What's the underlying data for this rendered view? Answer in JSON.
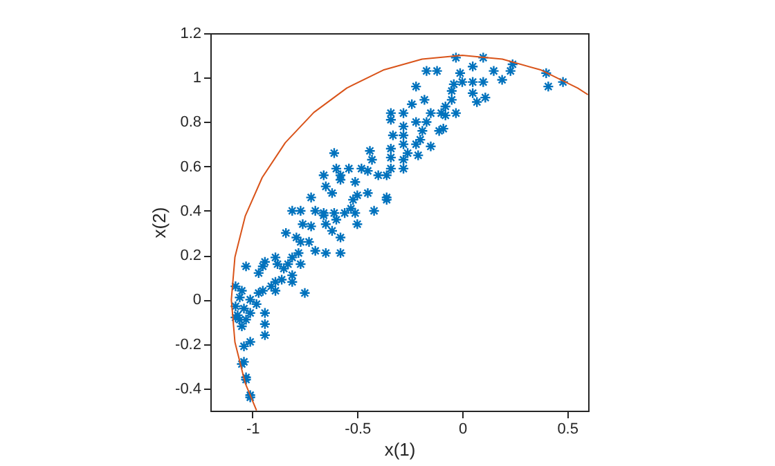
{
  "chart_data": {
    "type": "scatter",
    "xlabel": "x(1)",
    "ylabel": "x(2)",
    "xlim": [
      -1.2,
      0.6
    ],
    "ylim": [
      -0.5,
      1.2
    ],
    "xticks": [
      -1,
      -0.5,
      0,
      0.5
    ],
    "yticks": [
      -0.4,
      -0.2,
      0,
      0.2,
      0.4,
      0.6,
      0.8,
      1,
      1.2
    ],
    "grid": false,
    "series": [
      {
        "color": "#0072bd",
        "marker": "cross",
        "x": [
          -0.17,
          -0.12,
          -0.03,
          0.1,
          0.05,
          0.15,
          0.23,
          0.24,
          0.4,
          0.41,
          0.48,
          -0.22,
          -0.18,
          -0.01,
          -0.04,
          0,
          0.05,
          0.1,
          0.19,
          0.05,
          0.11,
          0.07,
          -0.05,
          -0.05,
          -0.08,
          -0.1,
          -0.03,
          -0.08,
          -0.15,
          -0.24,
          -0.28,
          -0.34,
          -0.34,
          -0.22,
          -0.17,
          -0.28,
          -0.19,
          -0.11,
          -0.09,
          -0.28,
          -0.33,
          -0.2,
          -0.28,
          -0.22,
          -0.15,
          -0.34,
          -0.26,
          -0.21,
          -0.34,
          -0.28,
          -0.34,
          -0.28,
          -0.36,
          -0.61,
          -0.66,
          -0.6,
          -0.58,
          -0.54,
          -0.48,
          -0.44,
          -0.43,
          -0.45,
          -0.4,
          -0.36,
          -0.65,
          -0.62,
          -0.58,
          -0.51,
          -0.5,
          -0.45,
          -0.52,
          -0.72,
          -0.81,
          -0.77,
          -0.7,
          -0.66,
          -0.61,
          -0.56,
          -0.51,
          -0.42,
          -0.36,
          -0.53,
          -0.66,
          -0.6,
          -0.5,
          -0.76,
          -0.72,
          -0.65,
          -0.62,
          -0.58,
          -0.84,
          -0.79,
          -0.77,
          -0.73,
          -0.7,
          -0.65,
          -0.58,
          -0.78,
          -0.81,
          -0.77,
          -0.83,
          -0.85,
          -0.89,
          -0.88,
          -0.94,
          -0.95,
          -0.97,
          -1.03,
          -0.81,
          -0.81,
          -0.86,
          -0.89,
          -0.91,
          -0.95,
          -0.97,
          -1.01,
          -0.98,
          -0.75,
          -0.89,
          -1.08,
          -1.05,
          -1.06,
          -1.08,
          -1.04,
          -1.07,
          -1.01,
          -1.06,
          -1.03,
          -1.05,
          -1.08,
          -0.94,
          -0.94,
          -0.94,
          -1.01,
          -1.04,
          -1.04,
          -1.05,
          -1.03,
          -1.03,
          -1.01,
          -1.01
        ],
        "values": [
          1.03,
          1.03,
          1.09,
          1.09,
          1.05,
          1.03,
          1.03,
          1.06,
          1.02,
          0.96,
          0.98,
          0.96,
          0.9,
          1.02,
          0.97,
          0.98,
          0.98,
          0.98,
          0.99,
          0.93,
          0.91,
          0.89,
          0.94,
          0.9,
          0.87,
          0.84,
          0.84,
          0.83,
          0.84,
          0.88,
          0.84,
          0.84,
          0.81,
          0.8,
          0.8,
          0.78,
          0.76,
          0.76,
          0.77,
          0.74,
          0.74,
          0.72,
          0.7,
          0.7,
          0.69,
          0.68,
          0.66,
          0.65,
          0.64,
          0.63,
          0.59,
          0.59,
          0.45,
          0.66,
          0.56,
          0.59,
          0.56,
          0.59,
          0.59,
          0.67,
          0.63,
          0.58,
          0.56,
          0.56,
          0.51,
          0.48,
          0.54,
          0.53,
          0.47,
          0.48,
          0.45,
          0.46,
          0.4,
          0.4,
          0.4,
          0.39,
          0.39,
          0.39,
          0.39,
          0.4,
          0.46,
          0.41,
          0.38,
          0.36,
          0.34,
          0.34,
          0.33,
          0.34,
          0.31,
          0.28,
          0.3,
          0.28,
          0.26,
          0.26,
          0.22,
          0.21,
          0.21,
          0.21,
          0.19,
          0.16,
          0.16,
          0.14,
          0.19,
          0.16,
          0.17,
          0.15,
          0.12,
          0.15,
          0.11,
          0.08,
          0.09,
          0.04,
          0.06,
          0.04,
          0.03,
          0,
          -0.02,
          0.03,
          0.08,
          0.06,
          0.04,
          0.01,
          -0.03,
          -0.04,
          -0.07,
          -0.06,
          -0.09,
          -0.09,
          -0.12,
          -0.08,
          -0.06,
          -0.11,
          -0.16,
          -0.19,
          -0.21,
          -0.28,
          -0.29,
          -0.35,
          -0.36,
          -0.43,
          -0.44
        ]
      },
      {
        "type": "line",
        "color": "#d95319",
        "x": [
          -0.98,
          -1.034,
          -1.083,
          -1.1,
          -1.083,
          -1.034,
          -0.953,
          -0.843,
          -0.707,
          -0.55,
          -0.376,
          -0.191,
          0,
          0.191,
          0.376,
          0.55,
          0.599
        ],
        "values": [
          -0.499,
          -0.376,
          -0.191,
          0,
          0.191,
          0.376,
          0.55,
          0.707,
          0.843,
          0.953,
          1.034,
          1.083,
          1.1,
          1.083,
          1.034,
          0.953,
          0.923
        ]
      }
    ]
  }
}
